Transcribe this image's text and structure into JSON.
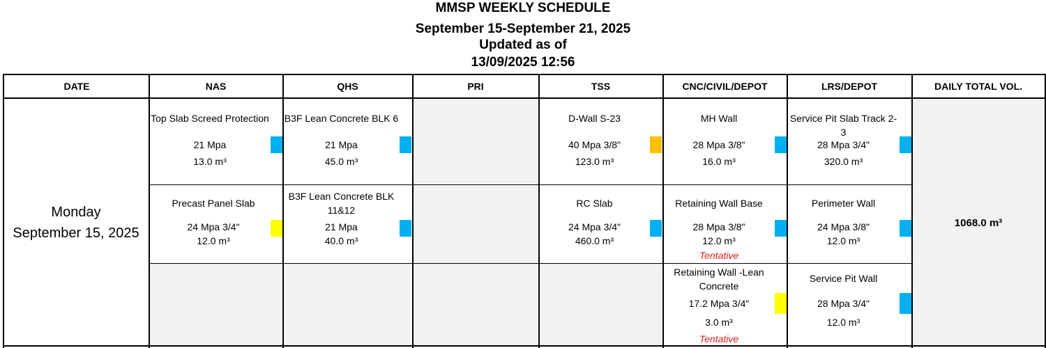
{
  "header": {
    "title": "MMSP WEEKLY SCHEDULE",
    "range": "September 15-September 21, 2025",
    "updated_label": "Updated as of",
    "updated_value": "13/09/2025 12:56"
  },
  "columns": [
    "DATE",
    "NAS",
    "QHS",
    "PRI",
    "TSS",
    "CNC/CIVIL/DEPOT",
    "LRS/DEPOT",
    "DAILY TOTAL VOL."
  ],
  "colors": {
    "blue": "#00b0f0",
    "yellow": "#ffff00",
    "orange": "#ffc000",
    "tentative": "#e02020",
    "grey": "#f2f2f2"
  },
  "day": {
    "weekday": "Monday",
    "date": "September 15, 2025",
    "total": "1068.0 m³",
    "entries": {
      "nas_1": {
        "name": "Top Slab Screed Protection",
        "spec": "21 Mpa",
        "vol": "13.0 m³",
        "marker": "blue"
      },
      "nas_2": {
        "name": "Precast Panel Slab",
        "spec": "24 Mpa 3/4\"",
        "vol": "12.0 m³",
        "marker": "yellow"
      },
      "qhs_1": {
        "name": "B3F Lean Concrete BLK 6",
        "spec": "21 Mpa",
        "vol": "45.0 m³",
        "marker": "blue"
      },
      "qhs_2": {
        "name": "B3F Lean Concrete BLK",
        "name2": "11&12",
        "spec": "21 Mpa",
        "vol": "40.0 m³",
        "marker": "blue"
      },
      "tss_1": {
        "name": "D-Wall S-23",
        "spec": "40 Mpa 3/8\"",
        "vol": "123.0 m³",
        "marker": "orange"
      },
      "tss_2": {
        "name": "RC Slab",
        "spec": "24 Mpa 3/4\"",
        "vol": "460.0 m³",
        "marker": "blue"
      },
      "cnc_1": {
        "name": "MH Wall",
        "spec": "28 Mpa 3/8\"",
        "vol": "16.0 m³",
        "marker": "blue"
      },
      "cnc_2": {
        "name": "Retaining Wall Base",
        "spec": "28 Mpa 3/8\"",
        "vol": "12.0 m³",
        "note": "Tentative",
        "marker": "blue"
      },
      "cnc_3": {
        "name": "Retaining Wall -Lean",
        "name2": "Concrete",
        "spec": "17.2 Mpa 3/4\"",
        "vol": "3.0 m³",
        "note": "Tentative",
        "marker": "yellow"
      },
      "lrs_1": {
        "name": "Service Pit Slab Track 2-3",
        "spec": "28 Mpa 3/4\"",
        "vol": "320.0 m³",
        "marker": "blue"
      },
      "lrs_2": {
        "name": "Perimeter Wall",
        "spec": "24 Mpa 3/8\"",
        "vol": "12.0 m³",
        "marker": "blue"
      },
      "lrs_3": {
        "name": "Service Pit Wall",
        "spec": "28 Mpa 3/4\"",
        "vol": "12.0 m³",
        "marker": "blue"
      }
    }
  }
}
